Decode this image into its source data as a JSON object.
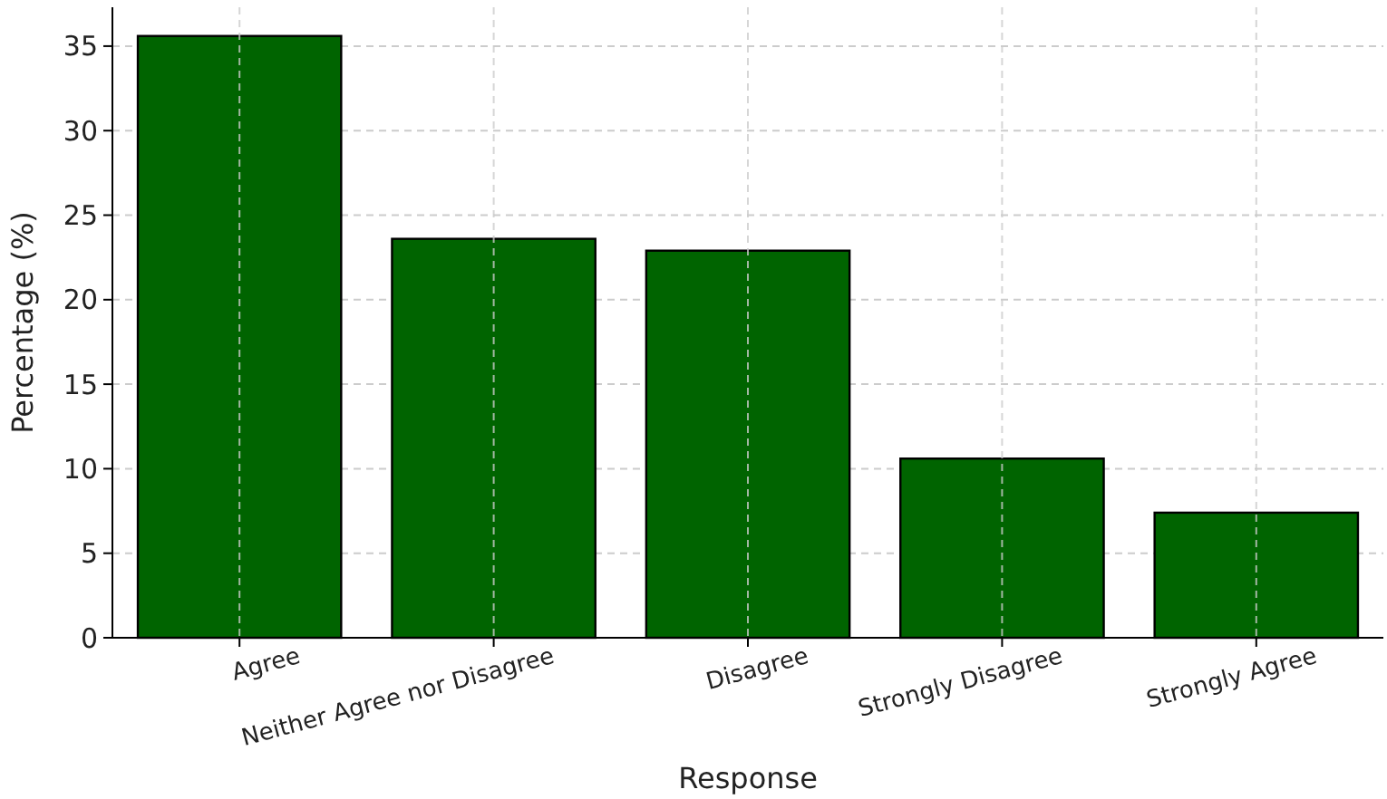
{
  "chart_data": {
    "type": "bar",
    "xlabel": "Response",
    "ylabel": "Percentage (%)",
    "categories": [
      "Agree",
      "Neither Agree nor Disagree",
      "Disagree",
      "Strongly Disagree",
      "Strongly Agree"
    ],
    "values": [
      35.6,
      23.6,
      22.9,
      10.6,
      7.4
    ],
    "color": "#006400",
    "ylim": [
      0,
      37.3
    ],
    "yticks": [
      0,
      5,
      10,
      15,
      20,
      25,
      30,
      35
    ],
    "grid": true
  }
}
